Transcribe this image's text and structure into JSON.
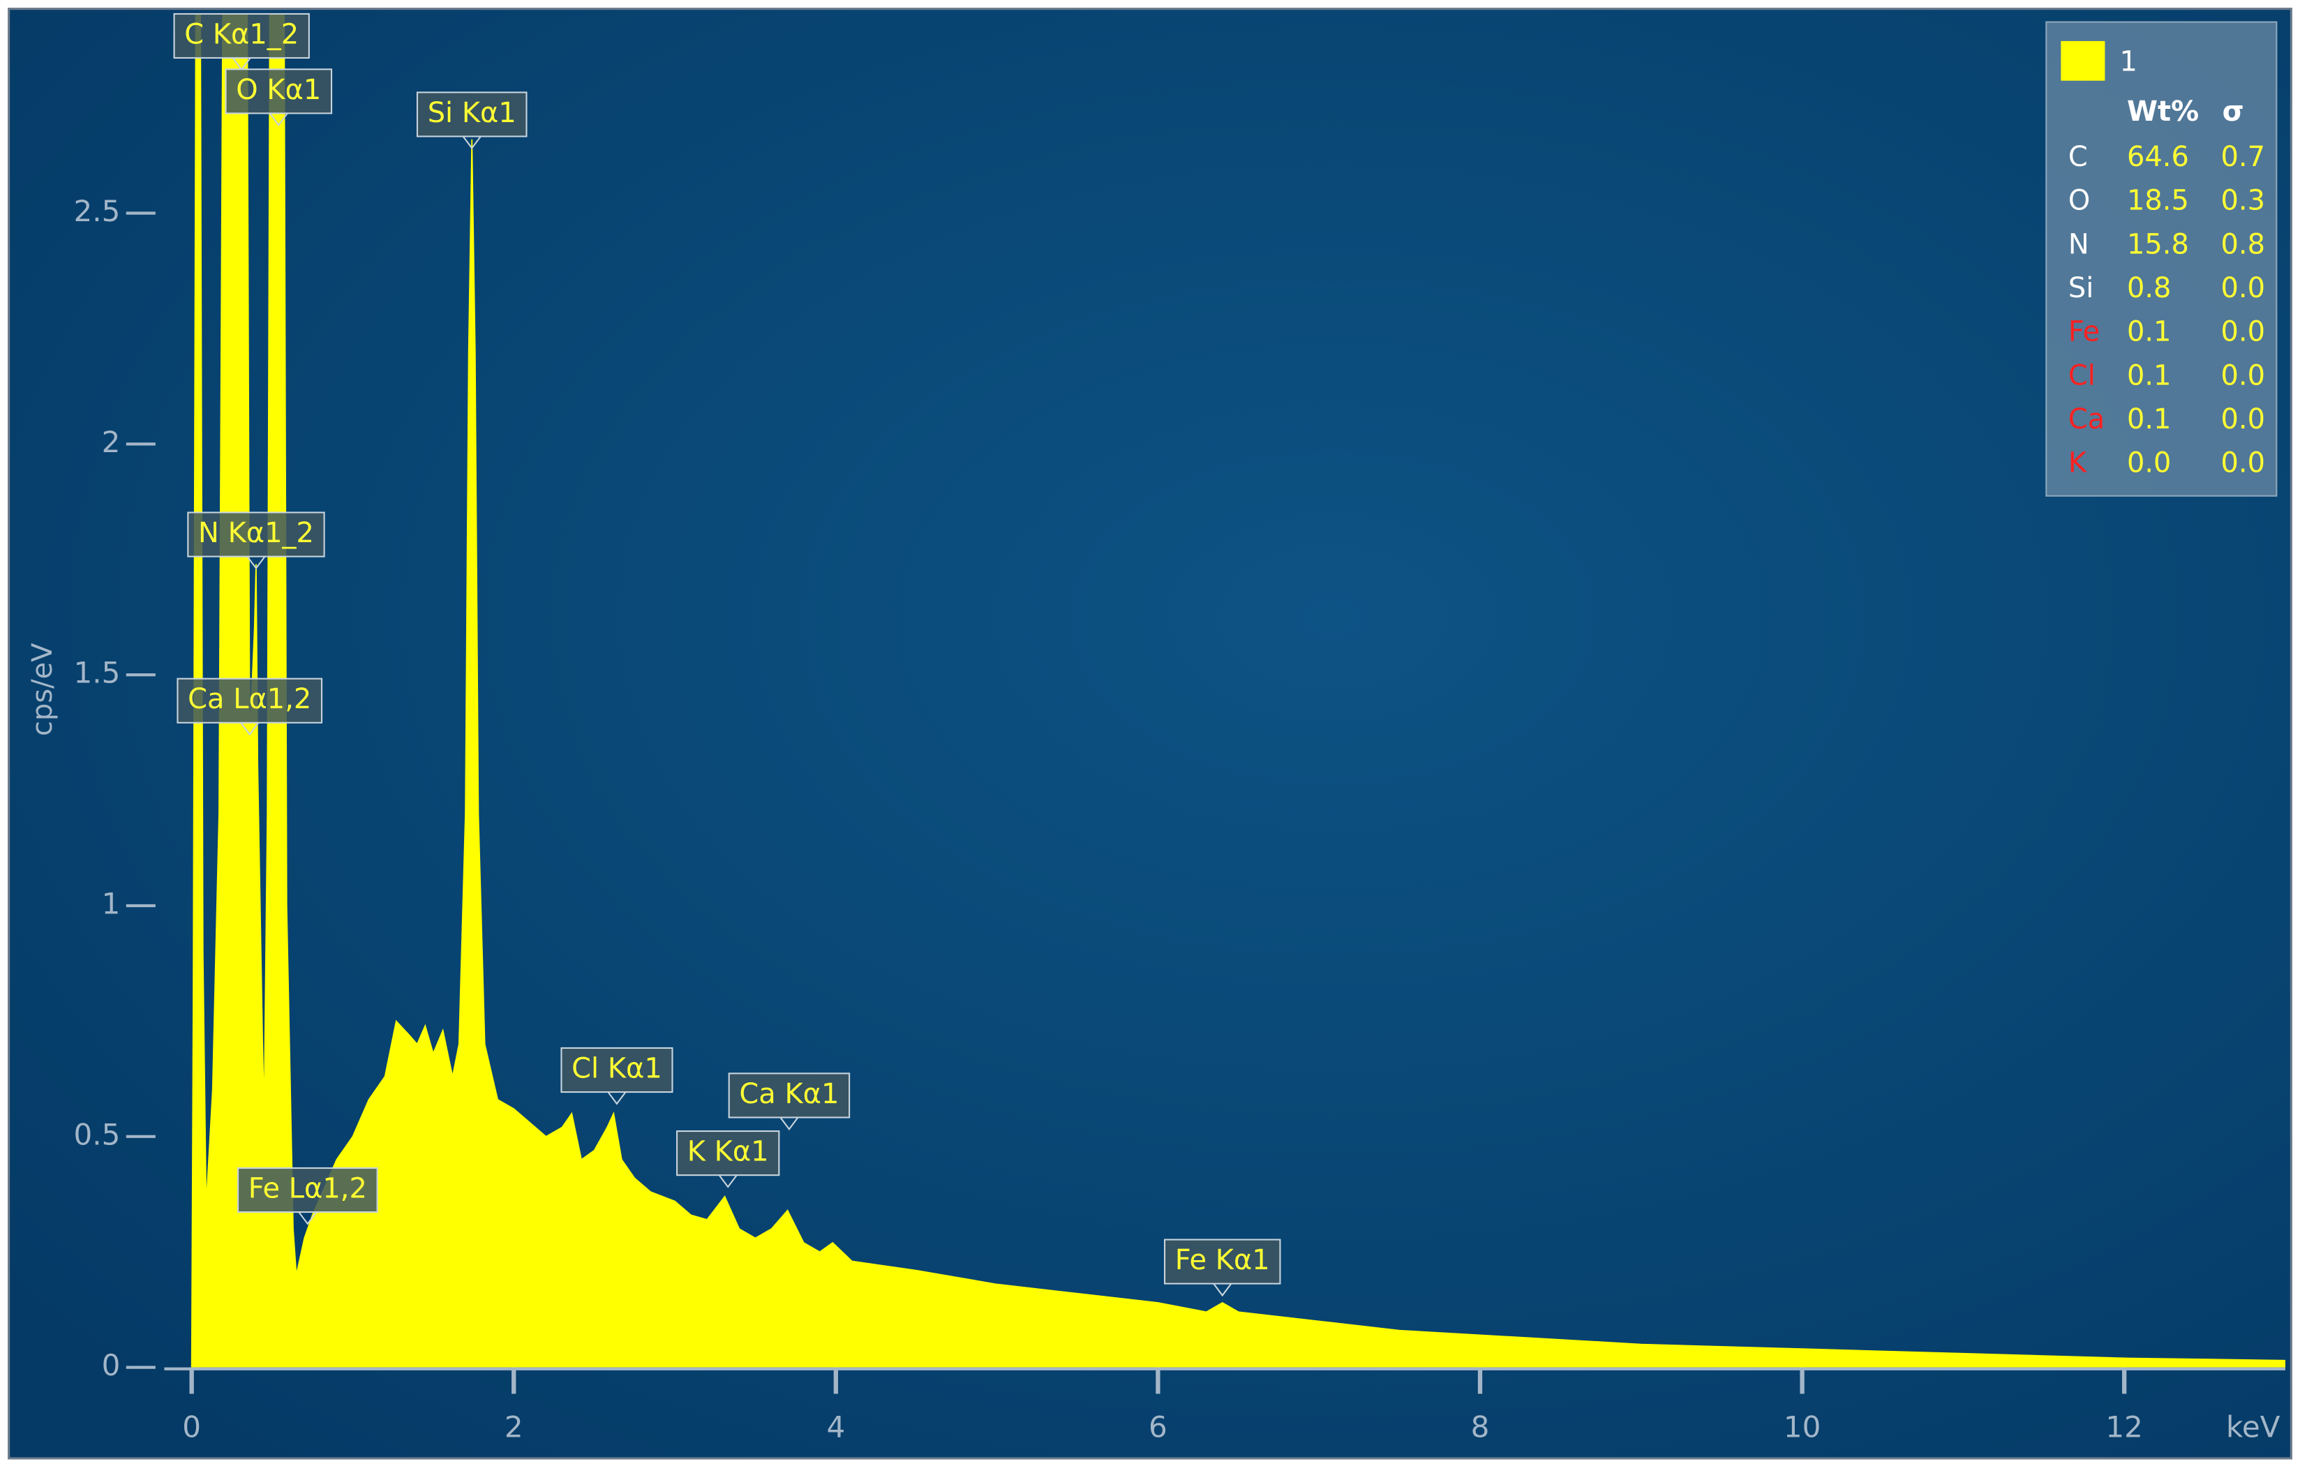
{
  "chart_data": {
    "type": "area",
    "x_label": "keV",
    "y_label": "cps/eV",
    "xlim": [
      -0.17,
      13.0
    ],
    "ylim": [
      0,
      2.93
    ],
    "xticks": [
      0,
      2,
      4,
      6,
      8,
      10,
      12
    ],
    "yticks": [
      0,
      0.5,
      1,
      1.5,
      2,
      2.5
    ],
    "series": [
      {
        "name": "1",
        "color": "#ffff00",
        "x": [
          0.0,
          0.01,
          0.03,
          0.05,
          0.07,
          0.09,
          0.13,
          0.17,
          0.2,
          0.34,
          0.36,
          0.39,
          0.4,
          0.41,
          0.44,
          0.45,
          0.47,
          0.49,
          0.57,
          0.59,
          0.63,
          0.65,
          0.7,
          0.75,
          0.8,
          0.9,
          1.0,
          1.1,
          1.2,
          1.27,
          1.35,
          1.4,
          1.45,
          1.5,
          1.56,
          1.62,
          1.66,
          1.7,
          1.72,
          1.74,
          1.76,
          1.78,
          1.82,
          1.9,
          2.0,
          2.1,
          2.2,
          2.3,
          2.36,
          2.42,
          2.5,
          2.58,
          2.62,
          2.67,
          2.75,
          2.85,
          3.0,
          3.1,
          3.2,
          3.31,
          3.4,
          3.5,
          3.6,
          3.7,
          3.8,
          3.9,
          3.98,
          4.1,
          4.3,
          4.5,
          5.0,
          5.5,
          6.0,
          6.3,
          6.4,
          6.5,
          7.0,
          7.5,
          8.0,
          9.0,
          10.0,
          11.0,
          12.0,
          13.0
        ],
        "values": [
          0.0,
          0.8,
          3.5,
          3.5,
          0.9,
          0.35,
          0.6,
          1.2,
          3.5,
          3.5,
          1.35,
          1.6,
          1.74,
          1.3,
          0.7,
          0.55,
          1.2,
          3.5,
          3.5,
          1.0,
          0.3,
          0.2,
          0.28,
          0.33,
          0.37,
          0.45,
          0.5,
          0.58,
          0.63,
          0.75,
          0.72,
          0.7,
          0.74,
          0.68,
          0.73,
          0.63,
          0.7,
          1.2,
          2.2,
          2.66,
          2.2,
          1.2,
          0.7,
          0.58,
          0.56,
          0.53,
          0.5,
          0.52,
          0.55,
          0.45,
          0.47,
          0.52,
          0.55,
          0.45,
          0.41,
          0.38,
          0.36,
          0.33,
          0.32,
          0.37,
          0.3,
          0.28,
          0.3,
          0.34,
          0.27,
          0.25,
          0.27,
          0.23,
          0.22,
          0.21,
          0.18,
          0.16,
          0.14,
          0.12,
          0.14,
          0.12,
          0.1,
          0.08,
          0.07,
          0.05,
          0.04,
          0.03,
          0.02,
          0.015
        ]
      }
    ],
    "annotations": [
      {
        "text": "C Kα1_2",
        "x": 0.31,
        "y": 2.83
      },
      {
        "text": "O Kα1",
        "x": 0.54,
        "y": 2.71
      },
      {
        "text": "Si Kα1",
        "x": 1.74,
        "y": 2.66
      },
      {
        "text": "N Kα1_2",
        "x": 0.4,
        "y": 1.75
      },
      {
        "text": "Ca Lα1,2",
        "x": 0.36,
        "y": 1.39
      },
      {
        "text": "Fe Lα1,2",
        "x": 0.72,
        "y": 0.33
      },
      {
        "text": "Cl Kα1",
        "x": 2.64,
        "y": 0.59
      },
      {
        "text": "K Kα1",
        "x": 3.33,
        "y": 0.41
      },
      {
        "text": "Ca Kα1",
        "x": 3.71,
        "y": 0.535
      },
      {
        "text": "Fe Kα1",
        "x": 6.4,
        "y": 0.175
      }
    ],
    "results": {
      "headers": [
        "Wt%",
        "σ"
      ],
      "rows": [
        {
          "element": "C",
          "wt": "64.6",
          "sigma": "0.7",
          "color": "#ffffff"
        },
        {
          "element": "O",
          "wt": "18.5",
          "sigma": "0.3",
          "color": "#ffffff"
        },
        {
          "element": "N",
          "wt": "15.8",
          "sigma": "0.8",
          "color": "#ffffff"
        },
        {
          "element": "Si",
          "wt": "0.8",
          "sigma": "0.0",
          "color": "#ffffff"
        },
        {
          "element": "Fe",
          "wt": "0.1",
          "sigma": "0.0",
          "color": "#ff2020"
        },
        {
          "element": "Cl",
          "wt": "0.1",
          "sigma": "0.0",
          "color": "#ff2020"
        },
        {
          "element": "Ca",
          "wt": "0.1",
          "sigma": "0.0",
          "color": "#ff2020"
        },
        {
          "element": "K",
          "wt": "0.0",
          "sigma": "0.0",
          "color": "#ff2020"
        }
      ]
    }
  }
}
